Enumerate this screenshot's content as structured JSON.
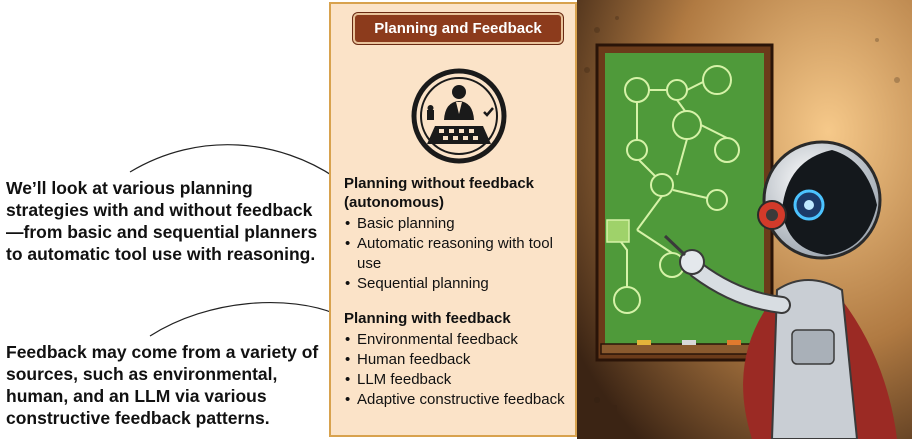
{
  "notes": {
    "top": "We’ll look at various planning strategies with and without feedback—from basic and sequential planners to automatic tool use with reasoning.",
    "bottom": "Feedback may come from a variety of sources, such as environmental, human, and an LLM via various constructive feedback patterns."
  },
  "panel": {
    "title": "Planning and Feedback",
    "sections": [
      {
        "heading": "Planning without feedback (autonomous)",
        "items": [
          "Basic planning",
          "Automatic reasoning with tool use",
          "Sequential planning"
        ]
      },
      {
        "heading": "Planning with feedback",
        "items": [
          "Environmental feedback",
          "Human feedback",
          "LLM feedback",
          "Adaptive constructive feedback"
        ]
      }
    ]
  },
  "icons": {
    "emblem": "chess-planner-icon",
    "illustration": "robot-at-chalkboard-illustration"
  },
  "colors": {
    "panel_bg": "#fbe3c8",
    "panel_border": "#d8a24e",
    "title_bg": "#8c3b1c",
    "board": "#4f9a3a"
  }
}
